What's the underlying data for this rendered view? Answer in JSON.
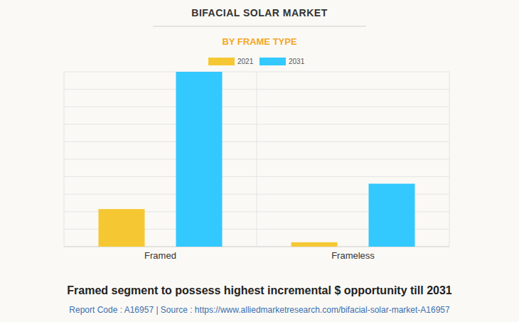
{
  "chart_data": {
    "type": "bar",
    "title": "BIFACIAL SOLAR MARKET",
    "subtitle": "BY FRAME TYPE",
    "categories": [
      "Framed",
      "Frameless"
    ],
    "series": [
      {
        "name": "2021",
        "color": "#f5c833",
        "values": [
          2.15,
          0.25
        ]
      },
      {
        "name": "2031",
        "color": "#33c8fe",
        "values": [
          10,
          3.6
        ]
      }
    ],
    "ylim": [
      0,
      10
    ],
    "yticks": [
      0,
      1,
      2,
      3,
      4,
      5,
      6,
      7,
      8,
      9,
      10
    ],
    "grid": true,
    "tick_labels": "x",
    "legend": "top",
    "annotations": [
      "Framed segment to possess highest incremental $ opportunity till 2031",
      "Report Code : A16957  |  Source : https://www.alliedmarketresearch.com/bifacial-solar-market-A16957"
    ]
  }
}
